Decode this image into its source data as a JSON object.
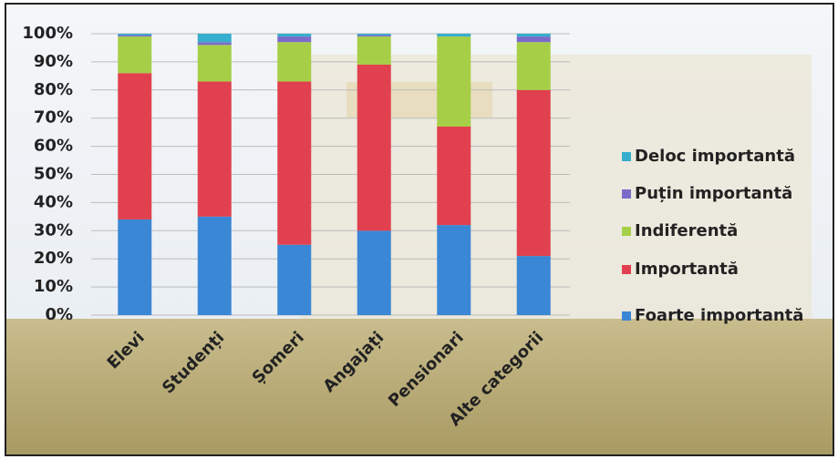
{
  "chart_data": {
    "type": "stacked-bar",
    "categories": [
      "Elevi",
      "Studenți",
      "Șomeri",
      "Angajați",
      "Pensionari",
      "Alte categorii"
    ],
    "series": [
      {
        "name": "Foarte importantă",
        "color": "#3a87d6",
        "values": [
          34,
          35,
          25,
          30,
          32,
          21
        ]
      },
      {
        "name": "Importantă",
        "color": "#e1414e",
        "values": [
          52,
          48,
          58,
          59,
          35,
          59
        ]
      },
      {
        "name": "Indiferentă",
        "color": "#a6cf47",
        "values": [
          13,
          13,
          14,
          10,
          32,
          17
        ]
      },
      {
        "name": "Puțin importantă",
        "color": "#7b6cc9",
        "values": [
          0.5,
          1,
          2,
          0.5,
          0,
          2
        ]
      },
      {
        "name": "Deloc importantă",
        "color": "#36aece",
        "values": [
          0.5,
          3,
          1,
          0.5,
          1,
          1
        ]
      }
    ],
    "ylim": [
      0,
      100
    ],
    "yticks": [
      {
        "value": 0,
        "label": "0%"
      },
      {
        "value": 10,
        "label": "10%"
      },
      {
        "value": 20,
        "label": "20%"
      },
      {
        "value": 30,
        "label": "30%"
      },
      {
        "value": 40,
        "label": "40%"
      },
      {
        "value": 50,
        "label": "50%"
      },
      {
        "value": 60,
        "label": "60%"
      },
      {
        "value": 70,
        "label": "70%"
      },
      {
        "value": 80,
        "label": "80%"
      },
      {
        "value": 90,
        "label": "90%"
      },
      {
        "value": 100,
        "label": "100%"
      }
    ],
    "grid": true,
    "legend": "right"
  }
}
